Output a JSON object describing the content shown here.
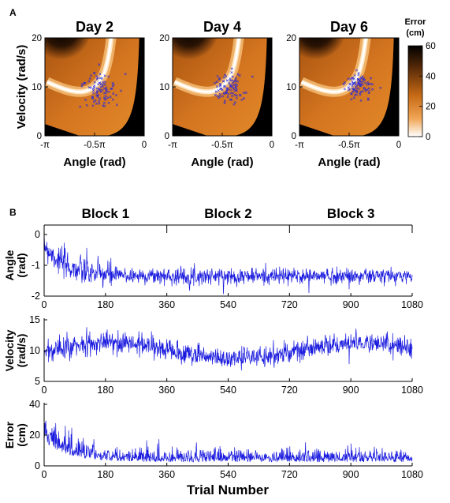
{
  "panel_labels": [
    "A",
    "B"
  ],
  "chart_data": [
    {
      "type": "heatmap",
      "title": "Day 2",
      "xlabel": "Angle (rad)",
      "ylabel": "Velocity (rad/s)",
      "xticks": [
        "-π",
        "-0.5π",
        "0"
      ],
      "yticks": [
        "0",
        "10",
        "20"
      ],
      "xlim": [
        -3.1416,
        0
      ],
      "ylim": [
        0,
        20
      ],
      "scatter_center": {
        "angle": -1.4,
        "velocity": 9
      },
      "scatter_spread": {
        "angle": 0.28,
        "velocity": 1.8
      }
    },
    {
      "type": "heatmap",
      "title": "Day 4",
      "xlabel": "Angle (rad)",
      "xticks": [
        "-π",
        "-0.5π",
        "0"
      ],
      "yticks": [
        "0",
        "10",
        "20"
      ],
      "xlim": [
        -3.1416,
        0
      ],
      "ylim": [
        0,
        20
      ],
      "scatter_center": {
        "angle": -1.35,
        "velocity": 9.5
      },
      "scatter_spread": {
        "angle": 0.25,
        "velocity": 1.6
      }
    },
    {
      "type": "heatmap",
      "title": "Day 6",
      "xlabel": "Angle (rad)",
      "xticks": [
        "-π",
        "-0.5π",
        "0"
      ],
      "yticks": [
        "0",
        "10",
        "20"
      ],
      "xlim": [
        -3.1416,
        0
      ],
      "ylim": [
        0,
        20
      ],
      "scatter_center": {
        "angle": -1.3,
        "velocity": 10
      },
      "scatter_spread": {
        "angle": 0.2,
        "velocity": 1.4
      }
    },
    {
      "type": "colorbar",
      "title_line1": "Error",
      "title_line2": "(cm)",
      "ticks": [
        "60",
        "40",
        "20",
        "0"
      ],
      "range": [
        0,
        60
      ],
      "colors": {
        "low": "#ffffff",
        "mid": "#e07a1a",
        "high": "#000000"
      }
    },
    {
      "type": "line",
      "ylabel_line1": "Angle",
      "ylabel_line2": "(rad)",
      "yticks": [
        "0",
        "-1",
        "-2"
      ],
      "ylim": [
        -2,
        0
      ],
      "xlim": [
        0,
        1080
      ],
      "xticks": [
        "0",
        "180",
        "360",
        "540",
        "720",
        "900",
        "1080"
      ],
      "series_color": "#1a1adf",
      "trend": {
        "start": -0.3,
        "settle": -1.35,
        "tau": 60,
        "noise": 0.17
      }
    },
    {
      "type": "line",
      "ylabel_line1": "Velocity",
      "ylabel_line2": "(rad/s)",
      "yticks": [
        "15",
        "10",
        "5"
      ],
      "ylim": [
        5,
        15
      ],
      "xlim": [
        0,
        1080
      ],
      "xticks": [
        "0",
        "180",
        "360",
        "540",
        "720",
        "900",
        "1080"
      ],
      "series_color": "#1a1adf",
      "trend": {
        "start": 9.5,
        "settle": 10,
        "tau": 40,
        "noise": 0.9
      }
    },
    {
      "type": "line",
      "ylabel_line1": "Error",
      "ylabel_line2": "(cm)",
      "yticks": [
        "40",
        "20",
        "0"
      ],
      "ylim": [
        0,
        40
      ],
      "xlim": [
        0,
        1080
      ],
      "xticks": [
        "0",
        "180",
        "360",
        "540",
        "720",
        "900",
        "1080"
      ],
      "xlabel": "Trial Number",
      "series_color": "#1a1adf",
      "trend": {
        "start": 16,
        "settle": 2.5,
        "tau": 70,
        "noise": 4
      }
    }
  ],
  "blocks": {
    "labels": [
      "Block 1",
      "Block 2",
      "Block 3"
    ],
    "boundaries": [
      0,
      360,
      720,
      1080
    ]
  }
}
